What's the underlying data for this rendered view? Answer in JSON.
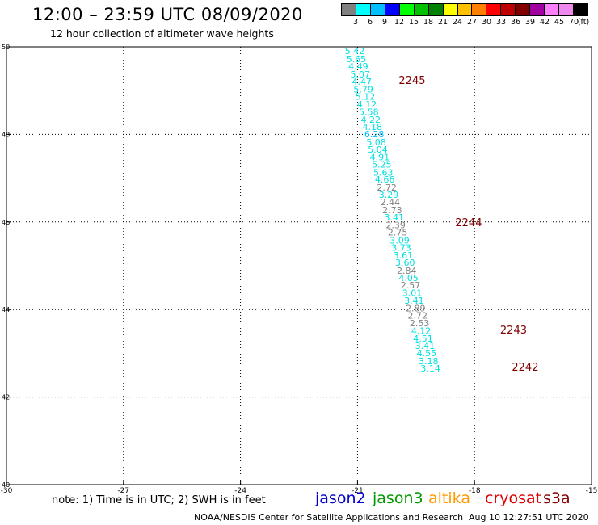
{
  "header": {
    "title": "12:00 – 23:59 UTC 08/09/2020",
    "subtitle": "12 hour collection of altimeter wave heights"
  },
  "color_scale": {
    "labels": [
      "3",
      "6",
      "9",
      "12",
      "15",
      "18",
      "21",
      "24",
      "27",
      "30",
      "33",
      "36",
      "39",
      "42",
      "45",
      "70"
    ],
    "unit": "(ft)",
    "colors": [
      "#808080",
      "#00ffff",
      "#00c0ff",
      "#0000ff",
      "#00ff00",
      "#00c000",
      "#008000",
      "#ffff00",
      "#ffc000",
      "#ff8000",
      "#ff0000",
      "#c00000",
      "#800000",
      "#a000a0",
      "#ff80ff",
      "#ee88ee",
      "#000000"
    ]
  },
  "map": {
    "lon_ticks": [
      -30,
      -27,
      -24,
      -21,
      -18,
      -15
    ],
    "lon_labels": [
      "-30",
      "-27",
      "-24",
      "-21",
      "-18",
      "-15"
    ],
    "lat_ticks": [
      40,
      42,
      44,
      46,
      48,
      50
    ],
    "lat_labels": [
      "40",
      "42",
      "44",
      "46",
      "48",
      "50"
    ],
    "grid": "dotted",
    "observations": [
      {
        "lon": -21.07,
        "lat": 49.83,
        "value": "5.42",
        "color": "#00e0e0"
      },
      {
        "lon": -21.03,
        "lat": 49.65,
        "value": "5.65",
        "color": "#00e0e0"
      },
      {
        "lon": -20.98,
        "lat": 49.48,
        "value": "4.49",
        "color": "#00e0e0"
      },
      {
        "lon": -20.93,
        "lat": 49.3,
        "value": "5.07",
        "color": "#00e0e0"
      },
      {
        "lon": -20.89,
        "lat": 49.13,
        "value": "4.47",
        "color": "#00e0e0"
      },
      {
        "lon": -20.85,
        "lat": 48.96,
        "value": "5.79",
        "color": "#00e0e0"
      },
      {
        "lon": -20.8,
        "lat": 48.79,
        "value": "5.12",
        "color": "#00e0e0"
      },
      {
        "lon": -20.76,
        "lat": 48.62,
        "value": "4.12",
        "color": "#00e0e0"
      },
      {
        "lon": -20.71,
        "lat": 48.44,
        "value": "5.58",
        "color": "#00e0e0"
      },
      {
        "lon": -20.66,
        "lat": 48.27,
        "value": "4.22",
        "color": "#00e0e0"
      },
      {
        "lon": -20.62,
        "lat": 48.1,
        "value": "4.18",
        "color": "#00e0e0"
      },
      {
        "lon": -20.57,
        "lat": 47.93,
        "value": "6.28",
        "color": "#00c0ff"
      },
      {
        "lon": -20.52,
        "lat": 47.75,
        "value": "5.08",
        "color": "#00e0e0"
      },
      {
        "lon": -20.48,
        "lat": 47.58,
        "value": "5.04",
        "color": "#00e0e0"
      },
      {
        "lon": -20.43,
        "lat": 47.41,
        "value": "4.91",
        "color": "#00e0e0"
      },
      {
        "lon": -20.38,
        "lat": 47.24,
        "value": "5.25",
        "color": "#00e0e0"
      },
      {
        "lon": -20.34,
        "lat": 47.06,
        "value": "5.63",
        "color": "#00e0e0"
      },
      {
        "lon": -20.3,
        "lat": 46.9,
        "value": "4.66",
        "color": "#00e0e0"
      },
      {
        "lon": -20.25,
        "lat": 46.72,
        "value": "2.72",
        "color": "#808080"
      },
      {
        "lon": -20.2,
        "lat": 46.55,
        "value": "3.29",
        "color": "#00e0e0"
      },
      {
        "lon": -20.16,
        "lat": 46.38,
        "value": "2.44",
        "color": "#808080"
      },
      {
        "lon": -20.11,
        "lat": 46.2,
        "value": "2.73",
        "color": "#808080"
      },
      {
        "lon": -20.06,
        "lat": 46.03,
        "value": "3.41",
        "color": "#00e0e0"
      },
      {
        "lon": -20.02,
        "lat": 45.86,
        "value": "2.39",
        "color": "#808080"
      },
      {
        "lon": -19.97,
        "lat": 45.69,
        "value": "2.75",
        "color": "#808080"
      },
      {
        "lon": -19.92,
        "lat": 45.51,
        "value": "3.09",
        "color": "#00e0e0"
      },
      {
        "lon": -19.88,
        "lat": 45.34,
        "value": "3.73",
        "color": "#00e0e0"
      },
      {
        "lon": -19.83,
        "lat": 45.17,
        "value": "3.61",
        "color": "#00e0e0"
      },
      {
        "lon": -19.78,
        "lat": 45.0,
        "value": "3.60",
        "color": "#00e0e0"
      },
      {
        "lon": -19.74,
        "lat": 44.82,
        "value": "2.84",
        "color": "#808080"
      },
      {
        "lon": -19.69,
        "lat": 44.65,
        "value": "4.05",
        "color": "#00e0e0"
      },
      {
        "lon": -19.64,
        "lat": 44.48,
        "value": "2.57",
        "color": "#808080"
      },
      {
        "lon": -19.6,
        "lat": 44.31,
        "value": "3.01",
        "color": "#00e0e0"
      },
      {
        "lon": -19.55,
        "lat": 44.13,
        "value": "3.41",
        "color": "#00e0e0"
      },
      {
        "lon": -19.51,
        "lat": 43.96,
        "value": "2.89",
        "color": "#808080"
      },
      {
        "lon": -19.46,
        "lat": 43.79,
        "value": "2.72",
        "color": "#808080"
      },
      {
        "lon": -19.41,
        "lat": 43.62,
        "value": "2.53",
        "color": "#808080"
      },
      {
        "lon": -19.37,
        "lat": 43.44,
        "value": "4.12",
        "color": "#00e0e0"
      },
      {
        "lon": -19.32,
        "lat": 43.27,
        "value": "4.51",
        "color": "#00e0e0"
      },
      {
        "lon": -19.27,
        "lat": 43.1,
        "value": "3.41",
        "color": "#00e0e0"
      },
      {
        "lon": -19.23,
        "lat": 42.93,
        "value": "4.55",
        "color": "#00e0e0"
      },
      {
        "lon": -19.18,
        "lat": 42.75,
        "value": "3.18",
        "color": "#00e0e0"
      },
      {
        "lon": -19.13,
        "lat": 42.58,
        "value": "3.14",
        "color": "#00e0e0"
      }
    ],
    "pass_labels": [
      {
        "lon": -19.6,
        "lat": 49.15,
        "text": "2245"
      },
      {
        "lon": -18.15,
        "lat": 45.9,
        "text": "2244"
      },
      {
        "lon": -17.0,
        "lat": 43.45,
        "text": "2243"
      },
      {
        "lon": -16.7,
        "lat": 42.6,
        "text": "2242"
      }
    ],
    "pass_label_color": "#800000"
  },
  "footer": {
    "note": "note: 1) Time is in UTC; 2) SWH is in feet",
    "missions": [
      {
        "name": "jason2",
        "color": "#0000cc"
      },
      {
        "name": "jason3",
        "color": "#009900"
      },
      {
        "name": "altika",
        "color": "#ff9900"
      },
      {
        "name": "cryosat",
        "color": "#dd0000"
      },
      {
        "name": "s3a",
        "color": "#880000"
      }
    ],
    "credit": "NOAA/NESDIS Center for Satellite Applications and Research",
    "timestamp": "Aug 10 12:27:51 UTC 2020"
  }
}
